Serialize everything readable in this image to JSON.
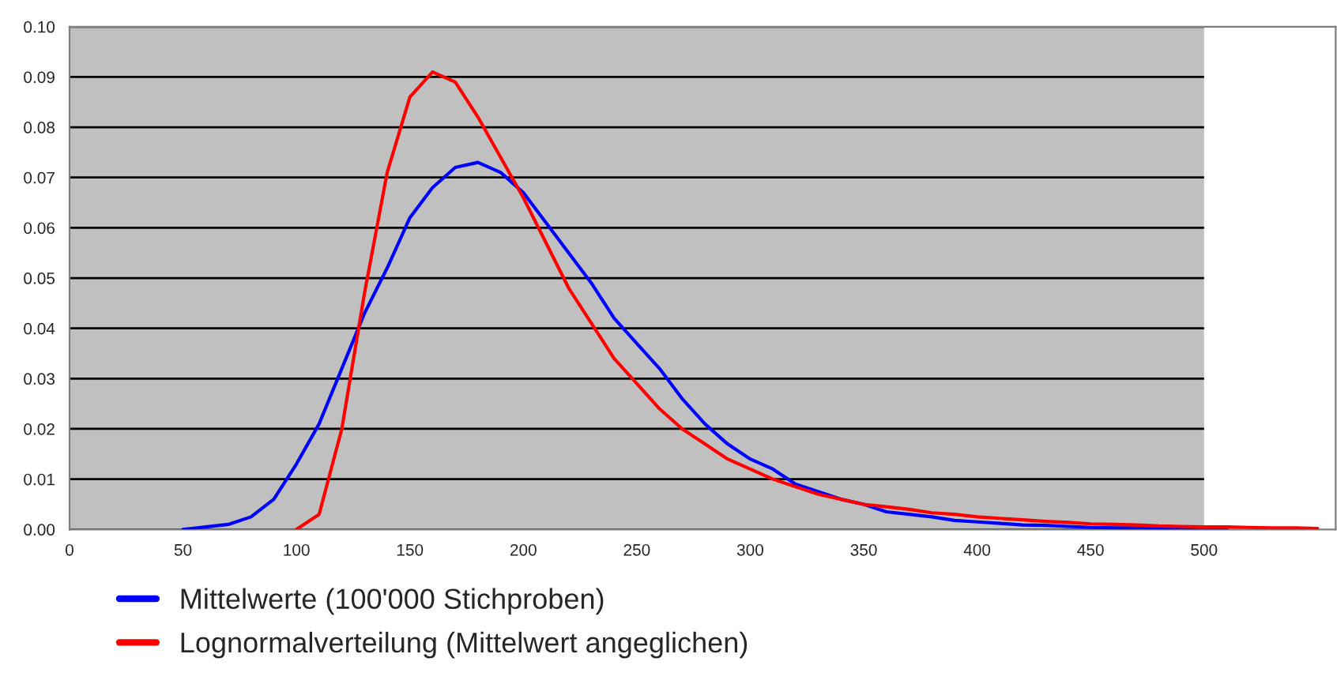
{
  "chart_data": {
    "type": "line",
    "x": [
      50,
      60,
      70,
      80,
      90,
      100,
      110,
      120,
      130,
      140,
      150,
      160,
      170,
      180,
      190,
      200,
      210,
      220,
      230,
      240,
      250,
      260,
      270,
      280,
      290,
      300,
      310,
      320,
      330,
      340,
      350,
      360,
      370,
      380,
      390,
      400,
      410,
      420,
      430,
      440,
      450,
      460,
      470,
      480,
      490,
      500,
      510,
      520,
      530,
      540,
      550
    ],
    "series": [
      {
        "name": "Mittelwerte (100'000 Stichproben)",
        "color": "#0000ff",
        "values": [
          0,
          0.0005,
          0.001,
          0.0025,
          0.006,
          0.013,
          0.021,
          0.032,
          0.043,
          0.052,
          0.062,
          0.068,
          0.072,
          0.073,
          0.071,
          0.067,
          0.061,
          0.055,
          0.049,
          0.042,
          0.037,
          0.032,
          0.026,
          0.021,
          0.017,
          0.014,
          0.012,
          0.009,
          0.0075,
          0.006,
          0.005,
          0.0035,
          0.003,
          0.0025,
          0.0018,
          0.0015,
          0.0012,
          0.0009,
          0.0008,
          0.0006,
          0.0004,
          0.0003,
          0.0003,
          0.0002,
          0.0002,
          0.0001,
          0.0002,
          null,
          null,
          null,
          null
        ]
      },
      {
        "name": "Lognormalverteilung (Mittelwert angeglichen)",
        "color": "#ff0000",
        "values": [
          null,
          null,
          null,
          null,
          null,
          0,
          0.003,
          0.02,
          0.047,
          0.071,
          0.086,
          0.091,
          0.089,
          0.082,
          0.074,
          0.066,
          0.057,
          0.048,
          0.041,
          0.034,
          0.029,
          0.024,
          0.02,
          0.017,
          0.014,
          0.012,
          0.01,
          0.0085,
          0.007,
          0.006,
          0.005,
          0.0045,
          0.004,
          0.0033,
          0.003,
          0.0025,
          0.0022,
          0.0019,
          0.0016,
          0.0014,
          0.0011,
          0.001,
          0.0009,
          0.0007,
          0.0006,
          0.0005,
          0.0005,
          0.0004,
          0.0003,
          0.0003,
          0.0002
        ]
      }
    ],
    "xlim": [
      0,
      558
    ],
    "xticks": [
      0,
      50,
      100,
      150,
      200,
      250,
      300,
      350,
      400,
      450,
      500
    ],
    "ylim": [
      0,
      0.1
    ],
    "yticks": [
      {
        "value": 0,
        "label": "0.00"
      },
      {
        "value": 0.01,
        "label": "0.01"
      },
      {
        "value": 0.02,
        "label": "0.02"
      },
      {
        "value": 0.03,
        "label": "0.03"
      },
      {
        "value": 0.04,
        "label": "0.04"
      },
      {
        "value": 0.05,
        "label": "0.05"
      },
      {
        "value": 0.06,
        "label": "0.06"
      },
      {
        "value": 0.07,
        "label": "0.07"
      },
      {
        "value": 0.08,
        "label": "0.08"
      },
      {
        "value": 0.09,
        "label": "0.09"
      },
      {
        "value": 0.1,
        "label": "0.10"
      }
    ],
    "bands": [
      {
        "axis": "x",
        "from": 0,
        "to": 500,
        "color": "#c0c0c0"
      }
    ],
    "grid": "y",
    "legend": "bottom",
    "marker": "none",
    "line_style": "solid"
  }
}
